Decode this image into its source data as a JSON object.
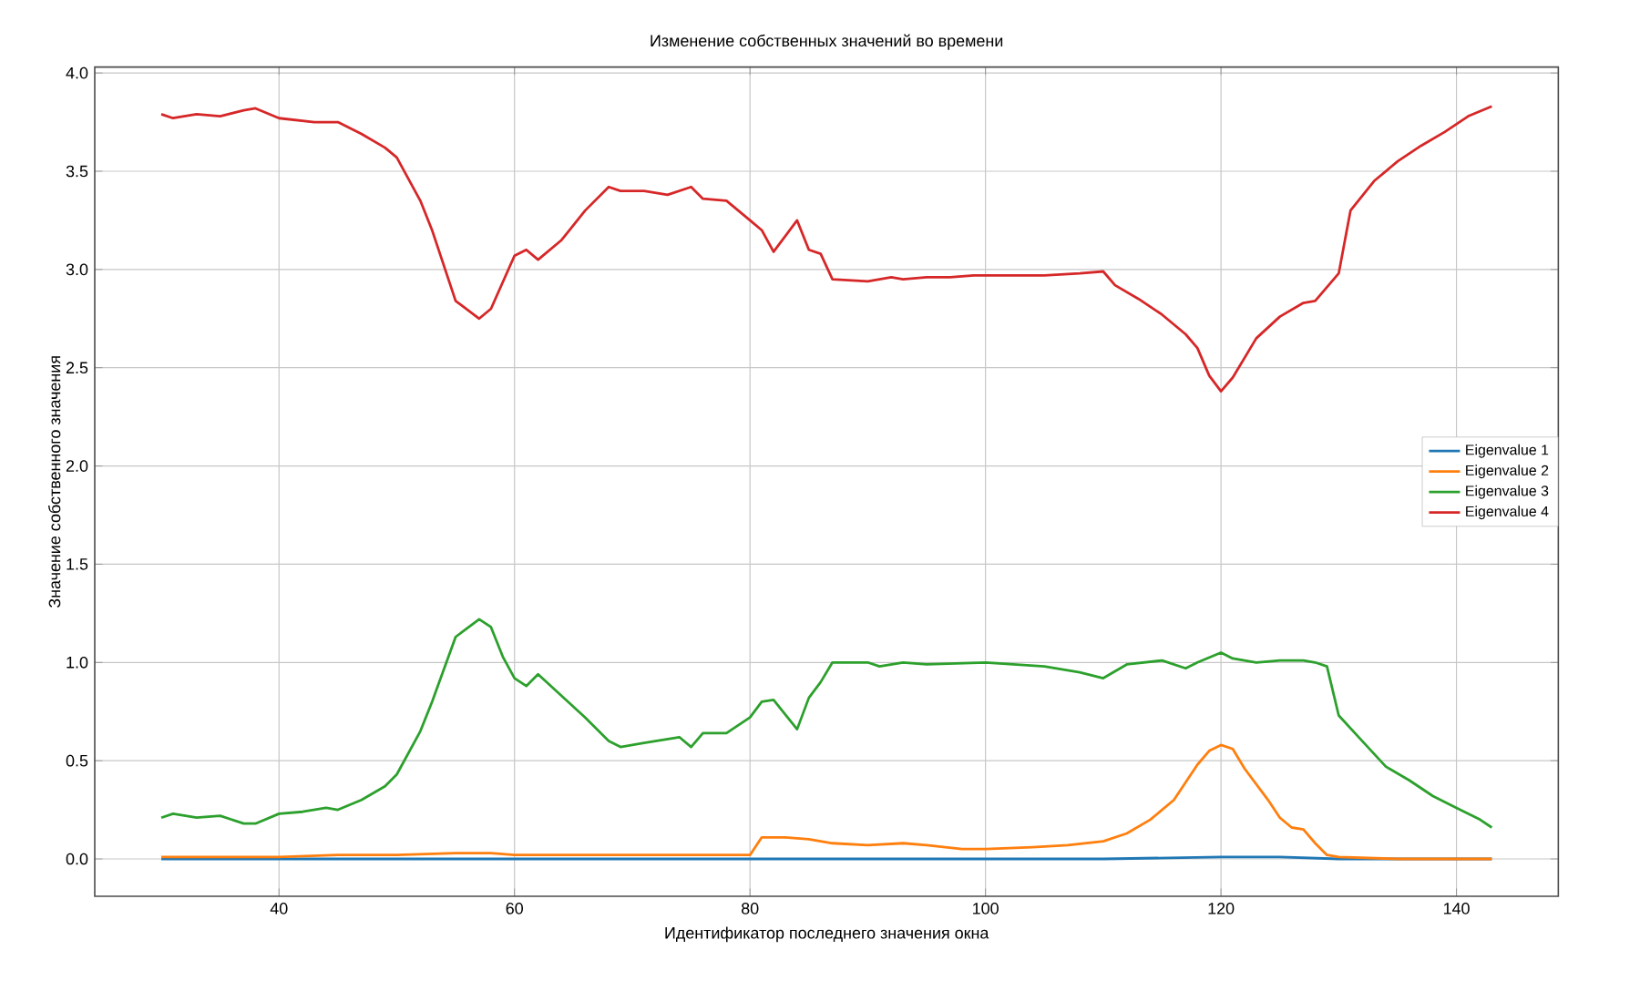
{
  "chart_data": {
    "type": "line",
    "title": "Изменение собственных значений во времени",
    "xlabel": "Идентификатор последнего значения окна",
    "ylabel": "Значение собственного значения",
    "xlim": [
      24.35,
      148.65
    ],
    "ylim": [
      -0.19,
      4.03
    ],
    "xticks": [
      40,
      60,
      80,
      100,
      120,
      140
    ],
    "yticks": [
      {
        "value": 0,
        "label": "0.0"
      },
      {
        "value": 0.5,
        "label": "0.5"
      },
      {
        "value": 1,
        "label": "1.0"
      },
      {
        "value": 1.5,
        "label": "1.5"
      },
      {
        "value": 2,
        "label": "2.0"
      },
      {
        "value": 2.5,
        "label": "2.5"
      },
      {
        "value": 3,
        "label": "3.0"
      },
      {
        "value": 3.5,
        "label": "3.5"
      },
      {
        "value": 4,
        "label": "4.0"
      }
    ],
    "grid": true,
    "legend": "right",
    "marker": "none",
    "line_style": "solid",
    "series": [
      {
        "name": "Eigenvalue 1",
        "color": "#1f77b4",
        "x": [
          30,
          50,
          80,
          100,
          110,
          120,
          125,
          130,
          143
        ],
        "values": [
          0.0,
          0.0,
          0.0,
          0.0,
          0.0,
          0.01,
          0.01,
          0.0,
          0.0
        ]
      },
      {
        "name": "Eigenvalue 2",
        "color": "#ff7f0e",
        "x": [
          30,
          40,
          45,
          50,
          55,
          58,
          60,
          70,
          80,
          81,
          83,
          85,
          87,
          90,
          93,
          95,
          98,
          100,
          104,
          107,
          110,
          112,
          114,
          116,
          118,
          119,
          120,
          121,
          122,
          124,
          125,
          126,
          127,
          128,
          129,
          130,
          135,
          143
        ],
        "values": [
          0.01,
          0.01,
          0.02,
          0.02,
          0.03,
          0.03,
          0.02,
          0.02,
          0.02,
          0.11,
          0.11,
          0.1,
          0.08,
          0.07,
          0.08,
          0.07,
          0.05,
          0.05,
          0.06,
          0.07,
          0.09,
          0.13,
          0.2,
          0.3,
          0.48,
          0.55,
          0.58,
          0.56,
          0.46,
          0.3,
          0.21,
          0.16,
          0.15,
          0.08,
          0.02,
          0.01,
          0.0,
          0.0
        ]
      },
      {
        "name": "Eigenvalue 3",
        "color": "#2ca02c",
        "x": [
          30,
          31,
          33,
          35,
          37,
          38,
          40,
          42,
          44,
          45,
          47,
          49,
          50,
          52,
          53,
          55,
          57,
          58,
          59,
          60,
          61,
          62,
          64,
          66,
          68,
          69,
          71,
          74,
          75,
          76,
          78,
          80,
          81,
          82,
          84,
          85,
          86,
          87,
          90,
          91,
          93,
          95,
          100,
          105,
          108,
          110,
          112,
          115,
          117,
          118,
          120,
          121,
          123,
          125,
          127,
          128,
          129,
          130,
          132,
          134,
          136,
          138,
          140,
          142,
          143
        ],
        "values": [
          0.21,
          0.23,
          0.21,
          0.22,
          0.18,
          0.18,
          0.23,
          0.24,
          0.26,
          0.25,
          0.3,
          0.37,
          0.43,
          0.65,
          0.8,
          1.13,
          1.22,
          1.18,
          1.03,
          0.92,
          0.88,
          0.94,
          0.83,
          0.72,
          0.6,
          0.57,
          0.59,
          0.62,
          0.57,
          0.64,
          0.64,
          0.72,
          0.8,
          0.81,
          0.66,
          0.82,
          0.9,
          1.0,
          1.0,
          0.98,
          1.0,
          0.99,
          1.0,
          0.98,
          0.95,
          0.92,
          0.99,
          1.01,
          0.97,
          1.0,
          1.05,
          1.02,
          1.0,
          1.01,
          1.01,
          1.0,
          0.98,
          0.73,
          0.6,
          0.47,
          0.4,
          0.32,
          0.26,
          0.2,
          0.16
        ]
      },
      {
        "name": "Eigenvalue 4",
        "color": "#d62728",
        "x": [
          30,
          31,
          33,
          35,
          37,
          38,
          40,
          43,
          45,
          47,
          49,
          50,
          52,
          53,
          55,
          57,
          58,
          60,
          61,
          62,
          64,
          66,
          68,
          69,
          71,
          73,
          75,
          76,
          78,
          80,
          81,
          82,
          84,
          85,
          86,
          87,
          90,
          92,
          93,
          95,
          97,
          99,
          102,
          105,
          108,
          110,
          111,
          113,
          115,
          117,
          118,
          119,
          120,
          121,
          123,
          125,
          127,
          128,
          130,
          131,
          133,
          135,
          137,
          139,
          141,
          143
        ],
        "values": [
          3.79,
          3.77,
          3.79,
          3.78,
          3.81,
          3.82,
          3.77,
          3.75,
          3.75,
          3.69,
          3.62,
          3.57,
          3.35,
          3.2,
          2.84,
          2.75,
          2.8,
          3.07,
          3.1,
          3.05,
          3.15,
          3.3,
          3.42,
          3.4,
          3.4,
          3.38,
          3.42,
          3.36,
          3.35,
          3.25,
          3.2,
          3.09,
          3.25,
          3.1,
          3.08,
          2.95,
          2.94,
          2.96,
          2.95,
          2.96,
          2.96,
          2.97,
          2.97,
          2.97,
          2.98,
          2.99,
          2.92,
          2.85,
          2.77,
          2.67,
          2.6,
          2.46,
          2.38,
          2.45,
          2.65,
          2.76,
          2.83,
          2.84,
          2.98,
          3.3,
          3.45,
          3.55,
          3.63,
          3.7,
          3.78,
          3.83
        ]
      }
    ]
  }
}
